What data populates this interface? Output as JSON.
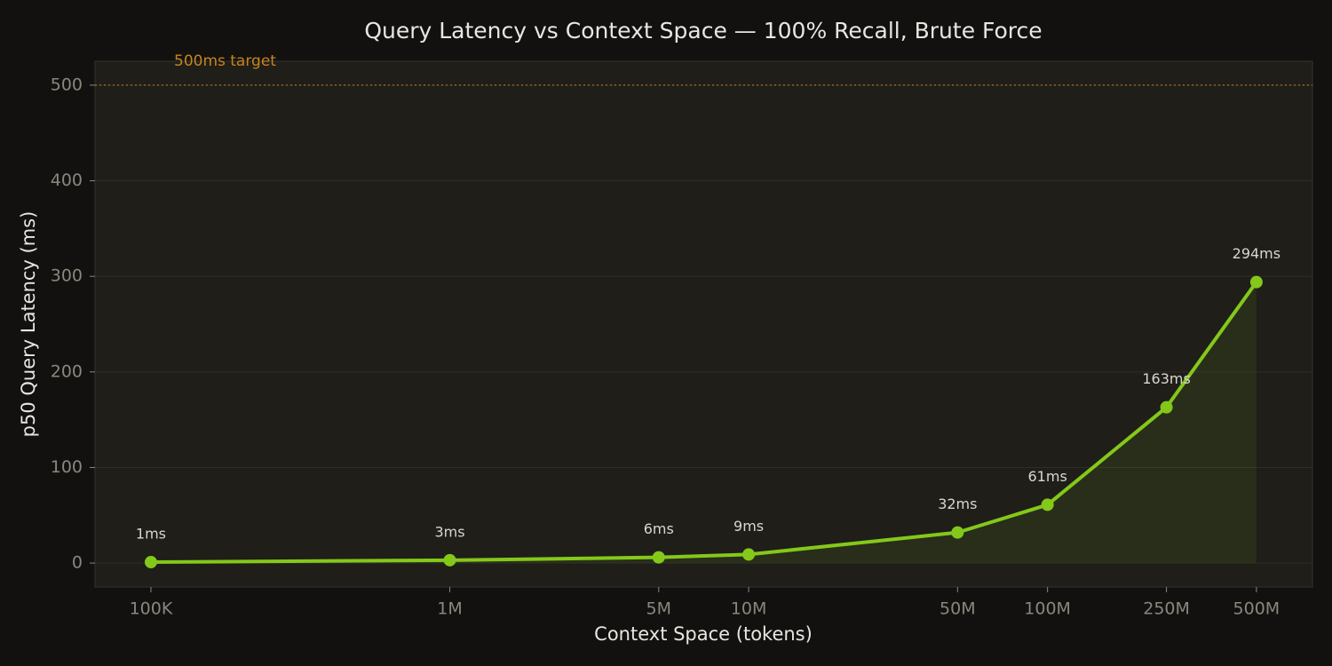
{
  "chart_data": {
    "type": "line",
    "title": "Query Latency vs Context Space — 100% Recall, Brute Force",
    "x_label": "Context Space (tokens)",
    "y_label": "p50 Query Latency (ms)",
    "x": [
      100000,
      1000000,
      5000000,
      10000000,
      50000000,
      100000000,
      250000000,
      500000000
    ],
    "series": [
      {
        "name": "p50 latency",
        "color": "#84c81a",
        "values": [
          1,
          3,
          6,
          9,
          32,
          61,
          163,
          294
        ],
        "value_labels": [
          "1ms",
          "3ms",
          "6ms",
          "9ms",
          "32ms",
          "61ms",
          "163ms",
          "294ms"
        ]
      }
    ],
    "x_scale": "log",
    "xlim": [
      65000,
      770000000
    ],
    "xticks": [
      {
        "value": 100000,
        "label": "100K"
      },
      {
        "value": 1000000,
        "label": "1M"
      },
      {
        "value": 5000000,
        "label": "5M"
      },
      {
        "value": 10000000,
        "label": "10M"
      },
      {
        "value": 50000000,
        "label": "50M"
      },
      {
        "value": 100000000,
        "label": "100M"
      },
      {
        "value": 250000000,
        "label": "250M"
      },
      {
        "value": 500000000,
        "label": "500M"
      }
    ],
    "ylim": [
      -25,
      525
    ],
    "yticks": [
      0,
      100,
      200,
      300,
      400,
      500
    ],
    "grid": true,
    "target": {
      "value": 500,
      "label": "500ms target",
      "color": "#c8831e"
    }
  }
}
